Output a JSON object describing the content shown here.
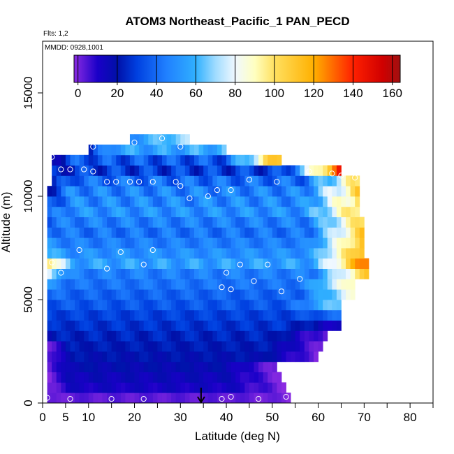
{
  "chart_data": {
    "type": "heatmap",
    "title": "ATOM3 Northeast_Pacific_1 PAN_PECD",
    "annotations": [
      "Flts: 1,2",
      "MMDD: 0928,1001"
    ],
    "xlabel": "Latitude (deg N)",
    "ylabel": "Altitude (m)",
    "xlim": [
      0,
      85
    ],
    "ylim": [
      0,
      17500
    ],
    "x_ticks": [
      0,
      5,
      10,
      20,
      30,
      40,
      50,
      60,
      70,
      80
    ],
    "y_ticks": [
      0,
      5000,
      10000,
      15000
    ],
    "colorbar": {
      "min": -2,
      "max": 164,
      "ticks": [
        0,
        20,
        40,
        60,
        80,
        100,
        120,
        140,
        160
      ],
      "stops": [
        {
          "value": -2,
          "color": "#8b2be2"
        },
        {
          "value": 10,
          "color": "#1a00c8"
        },
        {
          "value": 20,
          "color": "#0010a8"
        },
        {
          "value": 30,
          "color": "#0040e0"
        },
        {
          "value": 45,
          "color": "#2080ff"
        },
        {
          "value": 60,
          "color": "#30b0ff"
        },
        {
          "value": 70,
          "color": "#a0dcff"
        },
        {
          "value": 80,
          "color": "#f0f8ff"
        },
        {
          "value": 90,
          "color": "#ffffc0"
        },
        {
          "value": 100,
          "color": "#ffe060"
        },
        {
          "value": 120,
          "color": "#ffb000"
        },
        {
          "value": 140,
          "color": "#ff2000"
        },
        {
          "value": 155,
          "color": "#d00000"
        },
        {
          "value": 164,
          "color": "#a01010"
        }
      ]
    },
    "curtain": [
      {
        "alt": [
          0,
          500
        ],
        "lat": [
          1,
          54
        ],
        "base": 3,
        "west": 0,
        "east": 0,
        "ripple": 2
      },
      {
        "alt": [
          500,
          1000
        ],
        "lat": [
          1,
          53
        ],
        "base": 12,
        "west": 0,
        "east": 0,
        "ripple": 3
      },
      {
        "alt": [
          1000,
          1500
        ],
        "lat": [
          1,
          52
        ],
        "base": 15,
        "west": 0,
        "east": 0,
        "ripple": 3
      },
      {
        "alt": [
          1500,
          2000
        ],
        "lat": [
          1,
          51
        ],
        "base": 18,
        "west": 0,
        "east": 0,
        "ripple": 3
      },
      {
        "alt": [
          2000,
          2500
        ],
        "lat": [
          1,
          60
        ],
        "base": 20,
        "west": 0,
        "east": 0,
        "ripple": 3
      },
      {
        "alt": [
          2500,
          3000
        ],
        "lat": [
          1,
          61
        ],
        "base": 22,
        "west": 0,
        "east": 0,
        "ripple": 3
      },
      {
        "alt": [
          3000,
          3500
        ],
        "lat": [
          1,
          62
        ],
        "base": 24,
        "west": 20,
        "east": 0,
        "ripple": 4
      },
      {
        "alt": [
          3500,
          4000
        ],
        "lat": [
          1,
          65
        ],
        "base": 27,
        "west": 25,
        "east": 10,
        "ripple": 4
      },
      {
        "alt": [
          4000,
          4500
        ],
        "lat": [
          1,
          65
        ],
        "base": 30,
        "west": 30,
        "east": 40,
        "ripple": 4
      },
      {
        "alt": [
          4500,
          5000
        ],
        "lat": [
          1,
          65
        ],
        "base": 35,
        "west": 35,
        "east": 70,
        "ripple": 5
      },
      {
        "alt": [
          5000,
          5500
        ],
        "lat": [
          1,
          68
        ],
        "base": 38,
        "west": 40,
        "east": 85,
        "ripple": 5
      },
      {
        "alt": [
          5500,
          6000
        ],
        "lat": [
          1,
          68
        ],
        "base": 42,
        "west": 50,
        "east": 95,
        "ripple": 5
      },
      {
        "alt": [
          6000,
          6500
        ],
        "lat": [
          1,
          71
        ],
        "base": 45,
        "west": 80,
        "east": 110,
        "ripple": 6
      },
      {
        "alt": [
          6500,
          7000
        ],
        "lat": [
          1,
          71
        ],
        "base": 55,
        "west": 110,
        "east": 135,
        "ripple": 8
      },
      {
        "alt": [
          7000,
          7500
        ],
        "lat": [
          1,
          70
        ],
        "base": 50,
        "west": 60,
        "east": 120,
        "ripple": 6
      },
      {
        "alt": [
          7500,
          8000
        ],
        "lat": [
          1,
          70
        ],
        "base": 45,
        "west": 50,
        "east": 115,
        "ripple": 6
      },
      {
        "alt": [
          8000,
          8500
        ],
        "lat": [
          1,
          70
        ],
        "base": 42,
        "west": 45,
        "east": 110,
        "ripple": 8
      },
      {
        "alt": [
          8500,
          9000
        ],
        "lat": [
          1,
          70
        ],
        "base": 45,
        "west": 40,
        "east": 105,
        "ripple": 8
      },
      {
        "alt": [
          9000,
          9500
        ],
        "lat": [
          1,
          69
        ],
        "base": 50,
        "west": 35,
        "east": 105,
        "ripple": 9
      },
      {
        "alt": [
          9500,
          10000
        ],
        "lat": [
          1,
          69
        ],
        "base": 48,
        "west": 30,
        "east": 105,
        "ripple": 10
      },
      {
        "alt": [
          10000,
          10500
        ],
        "lat": [
          1,
          69
        ],
        "base": 46,
        "west": 25,
        "east": 105,
        "ripple": 10
      },
      {
        "alt": [
          10500,
          11000
        ],
        "lat": [
          2,
          69
        ],
        "base": 40,
        "west": 20,
        "east": 100,
        "ripple": 10
      },
      {
        "alt": [
          11000,
          11500
        ],
        "lat": [
          2,
          65
        ],
        "base": 30,
        "west": 20,
        "east": 140,
        "ripple": 10
      },
      {
        "alt": [
          11500,
          12000
        ],
        "lat": [
          2,
          52
        ],
        "base": 35,
        "west": 20,
        "east": 120,
        "ripple": 10
      },
      {
        "alt": [
          12000,
          12500
        ],
        "lat": [
          10,
          40
        ],
        "base": 55,
        "west": 20,
        "east": 60,
        "ripple": 8
      },
      {
        "alt": [
          12500,
          13000
        ],
        "lat": [
          19,
          32
        ],
        "base": 55,
        "west": 50,
        "east": 70,
        "ripple": 5
      }
    ],
    "sample_points": [
      {
        "lat": 1,
        "alt": 250
      },
      {
        "lat": 6,
        "alt": 200
      },
      {
        "lat": 15,
        "alt": 200
      },
      {
        "lat": 22,
        "alt": 200
      },
      {
        "lat": 39,
        "alt": 200
      },
      {
        "lat": 41,
        "alt": 300
      },
      {
        "lat": 47,
        "alt": 200
      },
      {
        "lat": 53,
        "alt": 300
      },
      {
        "lat": 2,
        "alt": 6800
      },
      {
        "lat": 4,
        "alt": 6300
      },
      {
        "lat": 8,
        "alt": 7400
      },
      {
        "lat": 14,
        "alt": 6500
      },
      {
        "lat": 17,
        "alt": 7300
      },
      {
        "lat": 22,
        "alt": 6700
      },
      {
        "lat": 24,
        "alt": 7400
      },
      {
        "lat": 39,
        "alt": 5600
      },
      {
        "lat": 40,
        "alt": 6300
      },
      {
        "lat": 41,
        "alt": 5500
      },
      {
        "lat": 43,
        "alt": 6700
      },
      {
        "lat": 46,
        "alt": 5900
      },
      {
        "lat": 49,
        "alt": 6700
      },
      {
        "lat": 52,
        "alt": 5400
      },
      {
        "lat": 56,
        "alt": 6000
      },
      {
        "lat": 2,
        "alt": 11900
      },
      {
        "lat": 4,
        "alt": 11300
      },
      {
        "lat": 6,
        "alt": 11300
      },
      {
        "lat": 9,
        "alt": 11300
      },
      {
        "lat": 11,
        "alt": 11200
      },
      {
        "lat": 11,
        "alt": 12400
      },
      {
        "lat": 14,
        "alt": 10700
      },
      {
        "lat": 16,
        "alt": 10700
      },
      {
        "lat": 19,
        "alt": 10700
      },
      {
        "lat": 21,
        "alt": 10700
      },
      {
        "lat": 24,
        "alt": 10700
      },
      {
        "lat": 20,
        "alt": 12600
      },
      {
        "lat": 26,
        "alt": 12800
      },
      {
        "lat": 29,
        "alt": 10700
      },
      {
        "lat": 30,
        "alt": 12400
      },
      {
        "lat": 30,
        "alt": 10500
      },
      {
        "lat": 32,
        "alt": 9900
      },
      {
        "lat": 36,
        "alt": 10000
      },
      {
        "lat": 38,
        "alt": 10300
      },
      {
        "lat": 41,
        "alt": 10300
      },
      {
        "lat": 45,
        "alt": 10800
      },
      {
        "lat": 51,
        "alt": 10700
      },
      {
        "lat": 58,
        "alt": 11200
      },
      {
        "lat": 63,
        "alt": 11100
      },
      {
        "lat": 65,
        "alt": 11000
      },
      {
        "lat": 68,
        "alt": 10900
      }
    ],
    "marker": {
      "lat": 34.5,
      "alt": 0
    }
  }
}
